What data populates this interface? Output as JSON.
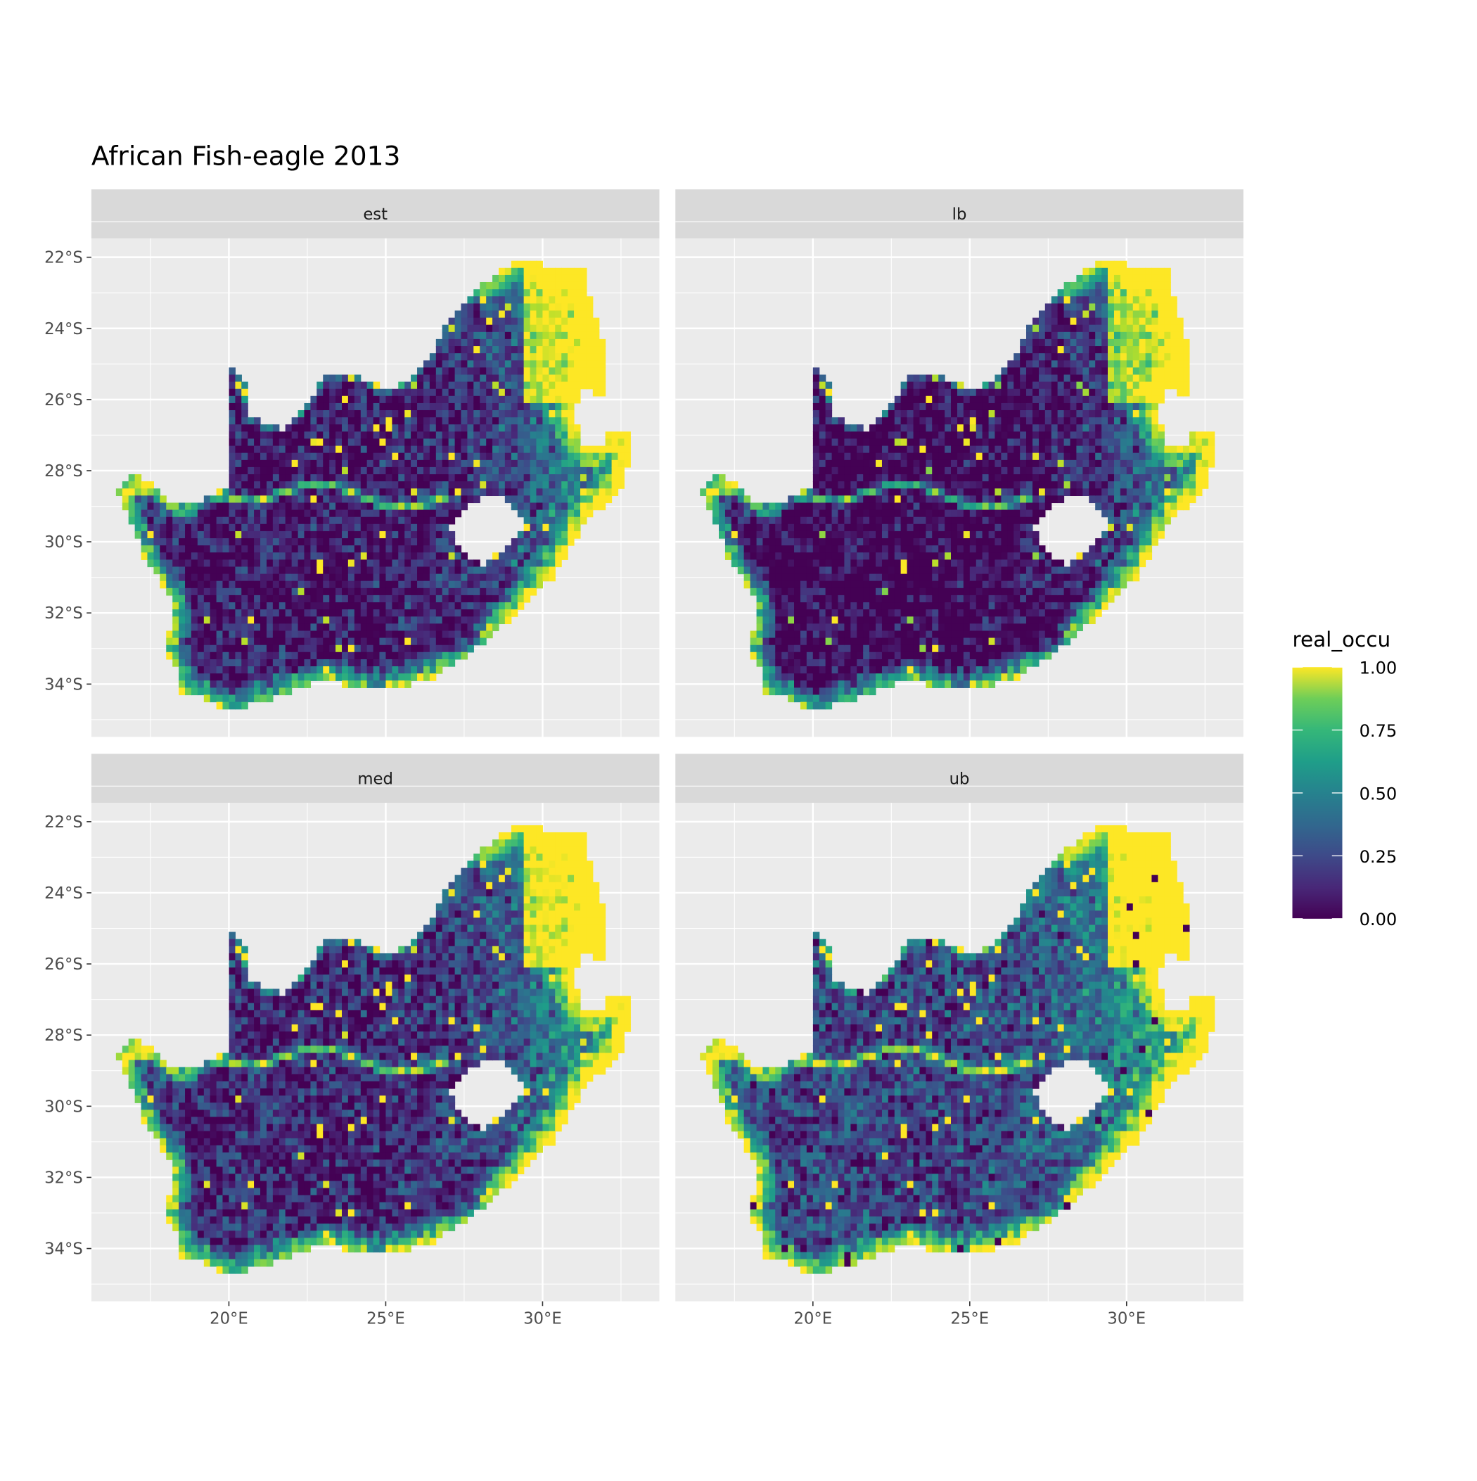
{
  "title": "African Fish-eagle 2013",
  "chart_data": {
    "type": "heatmap",
    "subtype": "faceted raster map",
    "title": "African Fish-eagle 2013",
    "facets": [
      "est",
      "lb",
      "med",
      "ub"
    ],
    "layout": "2x2",
    "x_ticks": [
      "20°E",
      "25°E",
      "30°E"
    ],
    "x_tick_values": [
      20,
      25,
      30
    ],
    "y_ticks": [
      "22°S",
      "24°S",
      "26°S",
      "28°S",
      "30°S",
      "32°S",
      "34°S"
    ],
    "y_tick_values": [
      -22,
      -24,
      -26,
      -28,
      -30,
      -32,
      -34
    ],
    "xlim": [
      15.6,
      33.7
    ],
    "ylim": [
      -35.5,
      -21.5
    ],
    "grid": true,
    "legend": {
      "title": "real_occu",
      "position": "right",
      "colormap": "viridis",
      "range": [
        0,
        1
      ],
      "ticks": [
        "0.00",
        "0.25",
        "0.50",
        "0.75",
        "1.00"
      ],
      "tick_values": [
        0,
        0.25,
        0.5,
        0.75,
        1
      ]
    },
    "colors": {
      "panel_bg": "#ebebeb",
      "strip_bg": "#d9d9d9",
      "viridis_low": "#440154",
      "viridis_mid": "#21908c",
      "viridis_high": "#fde725"
    }
  }
}
